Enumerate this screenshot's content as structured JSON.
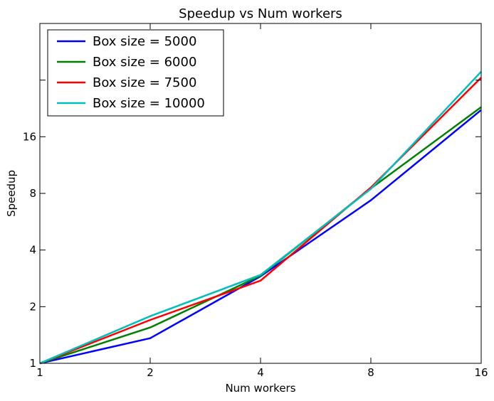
{
  "chart_data": {
    "type": "line",
    "title": "Speedup vs Num workers",
    "xlabel": "Num workers",
    "ylabel": "Speedup",
    "x_scale": "log2",
    "y_scale": "log2",
    "xlim": [
      1,
      16
    ],
    "ylim": [
      1,
      64
    ],
    "x_ticks": [
      {
        "value": 1,
        "label": "1"
      },
      {
        "value": 2,
        "label": "2"
      },
      {
        "value": 4,
        "label": "4"
      },
      {
        "value": 8,
        "label": "8"
      },
      {
        "value": 16,
        "label": "16"
      }
    ],
    "y_ticks": [
      {
        "value": 1,
        "label": "1"
      },
      {
        "value": 2,
        "label": "2"
      },
      {
        "value": 4,
        "label": "4"
      },
      {
        "value": 8,
        "label": "8"
      },
      {
        "value": 16,
        "label": "16"
      },
      {
        "value": 32,
        "label": ""
      }
    ],
    "x": [
      1,
      2,
      4,
      8,
      16
    ],
    "series": [
      {
        "name": "Box size = 5000",
        "color": "#0000ff",
        "values": [
          1.0,
          1.36,
          2.9,
          7.35,
          22.2
        ]
      },
      {
        "name": "Box size = 6000",
        "color": "#008000",
        "values": [
          1.0,
          1.55,
          2.92,
          8.5,
          23.0
        ]
      },
      {
        "name": "Box size = 7500",
        "color": "#ff0000",
        "values": [
          1.0,
          1.7,
          2.75,
          8.6,
          33.0
        ]
      },
      {
        "name": "Box size = 10000",
        "color": "#00bfbf",
        "values": [
          1.0,
          1.78,
          2.95,
          8.45,
          35.5
        ]
      }
    ],
    "grid": false,
    "legend_position": "top-left"
  }
}
